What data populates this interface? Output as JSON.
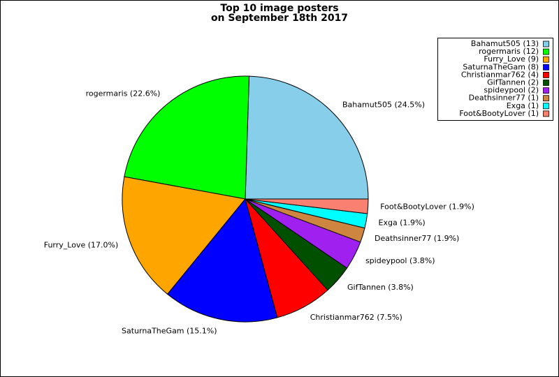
{
  "chart_data": {
    "type": "pie",
    "title": "Top 10 image posters",
    "subtitle": "on September 18th 2017",
    "categories": [
      "Bahamut505",
      "rogermaris",
      "Furry_Love",
      "SaturnaTheGam",
      "Christianmar762",
      "GifTannen",
      "spideypool",
      "Deathsinner77",
      "Exga",
      "Foot&BootyLover"
    ],
    "values": [
      24.5,
      22.6,
      17.0,
      15.1,
      7.5,
      3.8,
      3.8,
      1.9,
      1.9,
      1.9
    ],
    "value_labels": [
      "Bahamut505 (24.5%)",
      "rogermaris (22.6%)",
      "Furry_Love (17.0%)",
      "SaturnaTheGam (15.1%)",
      "Christianmar762 (7.5%)",
      "GifTannen (3.8%)",
      "spideypool (3.8%)",
      "Deathsinner77 (1.9%)",
      "Exga (1.9%)",
      "Foot&BootyLover (1.9%)"
    ],
    "legend_labels": [
      "Bahamut505 (13)",
      "rogermaris (12)",
      "Furry_Love (9)",
      "SaturnaTheGam (8)",
      "Christianmar762 (4)",
      "GifTannen (2)",
      "spideypool (2)",
      "Deathsinner77 (1)",
      "Exga (1)",
      "Foot&BootyLover (1)"
    ],
    "colors": [
      "#87ceeb",
      "#00ff00",
      "#ffa500",
      "#0000ff",
      "#ff0000",
      "#005000",
      "#a020f0",
      "#cd853f",
      "#00ffff",
      "#fa8072"
    ],
    "legend": "upper right"
  }
}
